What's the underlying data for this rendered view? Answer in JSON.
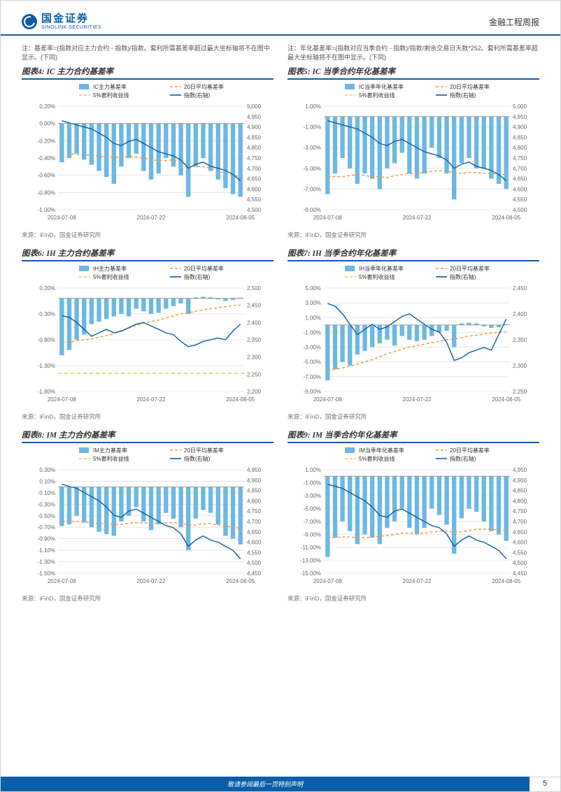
{
  "header": {
    "logo_cn": "国金证券",
    "logo_en": "SINOLINK SECURITIES",
    "doc_type": "金融工程周报"
  },
  "note_left": "注：基差率=(指数对应主力合约 - 指数)/指数。套利所需基差率超过最大坐标轴将不在图中显示。(下同)",
  "note_right": "注：年化基差率=(指数对应当季合约 - 指数)/指数/剩余交易日天数*252。套利所需基差率超最大坐标轴将不在图中显示。(下同)",
  "charts": [
    {
      "id": "chart4",
      "title": "图表4: IC 主力合约基差率",
      "legend": [
        "IC主力基差率",
        "20日平均基差率",
        "5%套利收益线",
        "指数(右轴)"
      ],
      "legend_colors": [
        "#6db8e3",
        "#e89a3c",
        "#e8c94a",
        "#0b5ea8"
      ],
      "legend_styles": [
        "bar",
        "dash",
        "dash",
        "line"
      ],
      "y1_min": -1.0,
      "y1_max": 0.2,
      "y1_step": 0.2,
      "y1_fmt": "pct2",
      "y2_min": 4500,
      "y2_max": 5000,
      "y2_step": 50,
      "x_labels": [
        "2024-07-08",
        "2024-07-22",
        "2024-08-05"
      ],
      "bars": [
        -0.45,
        -0.4,
        -0.35,
        -0.42,
        -0.48,
        -0.55,
        -0.62,
        -0.7,
        -0.5,
        -0.4,
        -0.35,
        -0.55,
        -0.65,
        -0.58,
        -0.4,
        -0.5,
        -0.6,
        -0.85,
        -0.5,
        -0.4,
        -0.55,
        -0.65,
        -0.75,
        -0.82,
        -0.85
      ],
      "line_avg": [
        -0.35,
        -0.35,
        -0.36,
        -0.36,
        -0.37,
        -0.38,
        -0.38,
        -0.39,
        -0.39,
        -0.38,
        -0.39,
        -0.4,
        -0.42,
        -0.43,
        -0.43,
        -0.42,
        -0.45,
        -0.48,
        -0.5,
        -0.5,
        -0.52,
        -0.55,
        -0.58,
        -0.6,
        -0.62
      ],
      "arb_level": null,
      "line_idx": [
        4930,
        4920,
        4910,
        4900,
        4890,
        4870,
        4850,
        4820,
        4810,
        4830,
        4840,
        4820,
        4800,
        4780,
        4770,
        4760,
        4740,
        4700,
        4720,
        4730,
        4710,
        4700,
        4690,
        4670,
        4640
      ],
      "source": "来源：iFinD，国金证券研究所"
    },
    {
      "id": "chart5",
      "title": "图表5: IC 当季合约年化基差率",
      "legend": [
        "IC当季年化基差率",
        "20日平均基差率",
        "5%套利收益线",
        "指数(右轴)"
      ],
      "legend_colors": [
        "#6db8e3",
        "#e89a3c",
        "#e8c94a",
        "#0b5ea8"
      ],
      "legend_styles": [
        "bar",
        "dash",
        "dash",
        "line"
      ],
      "y1_min": -9.0,
      "y1_max": 1.0,
      "y1_step": 2.0,
      "y1_fmt": "pct2",
      "y2_min": 4500,
      "y2_max": 5000,
      "y2_step": 50,
      "x_labels": [
        "2024-07-08",
        "2024-07-22",
        "2024-08-05"
      ],
      "bars": [
        -7.5,
        -5.5,
        -4.0,
        -5.0,
        -6.5,
        -5.5,
        -6.0,
        -7.0,
        -5.0,
        -4.5,
        -3.5,
        -5.5,
        -6.0,
        -5.5,
        -3.0,
        -4.0,
        -5.5,
        -8.0,
        -4.5,
        -4.0,
        -5.0,
        -5.0,
        -6.0,
        -6.5,
        -7.0
      ],
      "line_avg": [
        -5.8,
        -5.8,
        -5.8,
        -5.7,
        -5.6,
        -5.7,
        -5.8,
        -5.8,
        -5.9,
        -5.7,
        -5.6,
        -5.5,
        -5.5,
        -5.4,
        -5.3,
        -5.2,
        -5.3,
        -5.4,
        -5.5,
        -5.4,
        -5.4,
        -5.5,
        -5.5,
        -5.6,
        -5.6
      ],
      "arb_level": null,
      "line_idx": [
        4930,
        4920,
        4910,
        4900,
        4890,
        4870,
        4850,
        4820,
        4810,
        4830,
        4840,
        4820,
        4800,
        4780,
        4770,
        4760,
        4740,
        4700,
        4720,
        4730,
        4710,
        4700,
        4690,
        4670,
        4640
      ],
      "source": "来源：iFinD，国金证券研究所"
    },
    {
      "id": "chart6",
      "title": "图表6: IH 主力合约基差率",
      "legend": [
        "IH主力基差率",
        "20日平均基差率",
        "5%套利收益线",
        "指数(右轴)"
      ],
      "legend_colors": [
        "#6db8e3",
        "#e89a3c",
        "#e8c94a",
        "#0b5ea8"
      ],
      "legend_styles": [
        "bar",
        "dash",
        "dash",
        "line"
      ],
      "y1_min": -1.8,
      "y1_max": 0.2,
      "y1_step": 0.5,
      "y1_fmt": "pct2",
      "y1_ticks": [
        0.2,
        -0.3,
        -0.8,
        -1.3,
        -1.8
      ],
      "y2_min": 2200,
      "y2_max": 2500,
      "y2_step": 50,
      "x_labels": [
        "2024-07-08",
        "2024-07-22",
        "2024-08-05"
      ],
      "bars": [
        -1.1,
        -1.0,
        -0.8,
        -0.7,
        -0.5,
        -0.45,
        -0.4,
        -0.35,
        -0.3,
        -0.35,
        -0.2,
        -0.25,
        -0.3,
        -0.28,
        -0.2,
        -0.15,
        -0.1,
        -0.3,
        0.02,
        0.03,
        0.02,
        -0.02,
        -0.05,
        -0.03,
        0.01
      ],
      "line_avg": [
        -0.85,
        -0.85,
        -0.82,
        -0.8,
        -0.78,
        -0.75,
        -0.72,
        -0.68,
        -0.62,
        -0.58,
        -0.52,
        -0.48,
        -0.45,
        -0.42,
        -0.38,
        -0.34,
        -0.3,
        -0.28,
        -0.25,
        -0.22,
        -0.2,
        -0.18,
        -0.16,
        -0.14,
        -0.13
      ],
      "arb_level": -1.45,
      "line_idx": [
        2420,
        2415,
        2400,
        2380,
        2360,
        2370,
        2380,
        2370,
        2375,
        2385,
        2395,
        2400,
        2390,
        2380,
        2370,
        2365,
        2345,
        2330,
        2335,
        2345,
        2350,
        2355,
        2350,
        2375,
        2395
      ],
      "source": "来源：iFinD，国金证券研究所"
    },
    {
      "id": "chart7",
      "title": "图表7: IH 当季合约年化基差率",
      "legend": [
        "IH当季年化基差率",
        "20日平均基差率",
        "5%套利收益线",
        "指数(右轴)"
      ],
      "legend_colors": [
        "#6db8e3",
        "#e89a3c",
        "#e8c94a",
        "#0b5ea8"
      ],
      "legend_styles": [
        "bar",
        "dash",
        "dash",
        "line"
      ],
      "y1_min": -9.0,
      "y1_max": 5.0,
      "y1_step": 2.0,
      "y1_fmt": "pct2",
      "y2_min": 2250,
      "y2_max": 2450,
      "y2_step": 50,
      "x_labels": [
        "2024-07-08",
        "2024-07-22",
        "2024-08-05"
      ],
      "bars": [
        -7.5,
        -6.0,
        -5.0,
        -5.5,
        -4.0,
        -3.5,
        -3.0,
        -2.5,
        -2.0,
        -2.8,
        -1.5,
        -2.0,
        -2.2,
        -2.0,
        -1.5,
        -1.0,
        -0.8,
        -3.0,
        0.2,
        0.3,
        0.2,
        -0.2,
        -0.4,
        -0.3,
        0.1
      ],
      "line_avg": [
        -6.2,
        -6.0,
        -5.8,
        -5.6,
        -5.3,
        -5.0,
        -4.7,
        -4.3,
        -3.9,
        -3.6,
        -3.3,
        -3.0,
        -2.8,
        -2.6,
        -2.4,
        -2.2,
        -2.0,
        -1.9,
        -1.7,
        -1.5,
        -1.4,
        -1.2,
        -1.1,
        -1.0,
        -0.9
      ],
      "arb_level": null,
      "line_idx": [
        2420,
        2415,
        2400,
        2380,
        2360,
        2370,
        2380,
        2370,
        2375,
        2385,
        2395,
        2400,
        2390,
        2380,
        2370,
        2365,
        2345,
        2310,
        2315,
        2325,
        2330,
        2335,
        2330,
        2360,
        2390
      ],
      "source": "来源：iFinD，国金证券研究所"
    },
    {
      "id": "chart8",
      "title": "图表8: IM 主力合约基差率",
      "legend": [
        "IM主力基差率",
        "20日平均基差率",
        "5%套利收益线",
        "指数(右轴)"
      ],
      "legend_colors": [
        "#6db8e3",
        "#e89a3c",
        "#e8c94a",
        "#0b5ea8"
      ],
      "legend_styles": [
        "bar",
        "dash",
        "dash",
        "line"
      ],
      "y1_min": -1.5,
      "y1_max": 0.3,
      "y1_step": 0.2,
      "y1_fmt": "pct2",
      "y2_min": 4450,
      "y2_max": 4950,
      "y2_step": 50,
      "x_labels": [
        "2024-07-08",
        "2024-07-22",
        "2024-08-05"
      ],
      "bars": [
        -0.68,
        -0.65,
        -0.5,
        -0.62,
        -0.7,
        -0.78,
        -0.82,
        -0.85,
        -0.6,
        -0.5,
        -0.35,
        -0.6,
        -0.75,
        -0.65,
        -0.45,
        -0.55,
        -0.7,
        -1.1,
        -0.55,
        -0.4,
        -0.45,
        -0.65,
        -0.85,
        -0.9,
        -1.0
      ],
      "line_avg": [
        -0.6,
        -0.6,
        -0.6,
        -0.61,
        -0.62,
        -0.64,
        -0.64,
        -0.65,
        -0.65,
        -0.63,
        -0.62,
        -0.62,
        -0.63,
        -0.63,
        -0.62,
        -0.62,
        -0.63,
        -0.66,
        -0.66,
        -0.64,
        -0.64,
        -0.66,
        -0.68,
        -0.7,
        -0.72
      ],
      "arb_level": null,
      "line_idx": [
        4880,
        4870,
        4860,
        4840,
        4820,
        4800,
        4770,
        4730,
        4720,
        4750,
        4760,
        4740,
        4720,
        4700,
        4680,
        4670,
        4640,
        4580,
        4610,
        4630,
        4610,
        4600,
        4580,
        4560,
        4520
      ],
      "source": "来源：iFinD，国金证券研究所"
    },
    {
      "id": "chart9",
      "title": "图表9: IM 当季合约年化基差率",
      "legend": [
        "IM当季年化基差率",
        "20日平均基差率",
        "5%套利收益线",
        "指数(右轴)"
      ],
      "legend_colors": [
        "#6db8e3",
        "#e89a3c",
        "#e8c94a",
        "#0b5ea8"
      ],
      "legend_styles": [
        "bar",
        "dash",
        "dash",
        "line"
      ],
      "y1_min": -15.0,
      "y1_max": 1.0,
      "y1_step": 2.0,
      "y1_fmt": "pct2",
      "y2_min": 4450,
      "y2_max": 4950,
      "y2_step": 50,
      "x_labels": [
        "2024-07-08",
        "2024-07-22",
        "2024-08-05"
      ],
      "bars": [
        -12.5,
        -9.5,
        -7.0,
        -8.5,
        -10.5,
        -9.0,
        -9.5,
        -10.5,
        -8.0,
        -7.0,
        -5.0,
        -8.0,
        -9.0,
        -8.0,
        -5.0,
        -6.0,
        -7.5,
        -12.0,
        -6.5,
        -5.0,
        -5.5,
        -7.0,
        -8.5,
        -9.0,
        -10.0
      ],
      "line_avg": [
        -9.5,
        -9.5,
        -9.4,
        -9.4,
        -9.5,
        -9.5,
        -9.4,
        -9.3,
        -9.2,
        -9.0,
        -8.8,
        -8.8,
        -8.8,
        -8.8,
        -8.6,
        -8.5,
        -8.5,
        -8.7,
        -8.6,
        -8.4,
        -8.2,
        -8.2,
        -8.2,
        -8.3,
        -8.4
      ],
      "arb_level": null,
      "line_idx": [
        4880,
        4870,
        4860,
        4840,
        4820,
        4800,
        4770,
        4730,
        4720,
        4750,
        4760,
        4740,
        4720,
        4700,
        4680,
        4670,
        4640,
        4580,
        4610,
        4630,
        4610,
        4600,
        4580,
        4560,
        4520
      ],
      "source": "来源：iFinD，国金证券研究所"
    }
  ],
  "footer": {
    "disclaimer": "敬请参阅最后一页特别声明",
    "page": "5"
  },
  "style": {
    "brand_color": "#0b5ea8",
    "bar_color": "#6db8e3",
    "avg_color": "#e89a3c",
    "arb_color": "#e8c94a",
    "idx_color": "#0b5ea8",
    "grid_color": "#d8d8d8",
    "axis_color": "#888888",
    "label_color": "#666666",
    "label_fontsize": 8,
    "title_fontsize": 11.5,
    "bar_width_ratio": 0.6
  }
}
